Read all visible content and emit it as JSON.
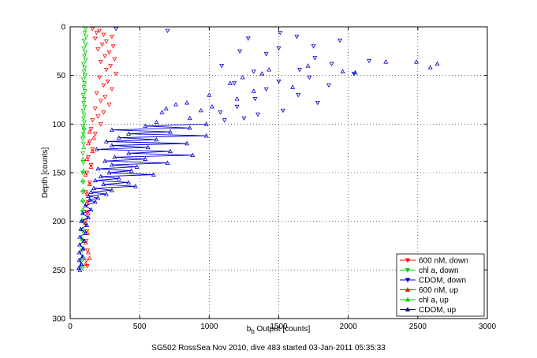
{
  "chart_data": {
    "type": "scatter",
    "title": "",
    "xlabel_main": "b",
    "xlabel_sub": "b",
    "xlabel_rest": " Output [counts]",
    "ylabel": "Depth [counts]",
    "xlim": [
      0,
      3000
    ],
    "ylim": [
      0,
      300
    ],
    "y_reversed": true,
    "grid": true,
    "legend_position": "bottom-right",
    "x_ticks": [
      0,
      500,
      1000,
      1500,
      2000,
      2500,
      3000
    ],
    "y_ticks": [
      0,
      50,
      100,
      150,
      200,
      250,
      300
    ],
    "series": [
      {
        "name": "600 nM, down",
        "color": "#ff0000",
        "marker": "triangle-down",
        "line": false,
        "points": [
          [
            160,
            2
          ],
          [
            210,
            4
          ],
          [
            190,
            6
          ],
          [
            240,
            8
          ],
          [
            300,
            10
          ],
          [
            180,
            12
          ],
          [
            260,
            15
          ],
          [
            230,
            18
          ],
          [
            310,
            20
          ],
          [
            200,
            23
          ],
          [
            280,
            26
          ],
          [
            250,
            30
          ],
          [
            320,
            33
          ],
          [
            220,
            36
          ],
          [
            290,
            40
          ],
          [
            260,
            44
          ],
          [
            330,
            48
          ],
          [
            210,
            52
          ],
          [
            270,
            56
          ],
          [
            240,
            60
          ],
          [
            300,
            64
          ],
          [
            190,
            68
          ],
          [
            250,
            72
          ],
          [
            220,
            76
          ],
          [
            280,
            80
          ],
          [
            180,
            84
          ],
          [
            240,
            88
          ],
          [
            200,
            92
          ],
          [
            160,
            96
          ],
          [
            220,
            100
          ],
          [
            150,
            105
          ],
          [
            180,
            110
          ],
          [
            140,
            118
          ],
          [
            160,
            126
          ],
          [
            130,
            134
          ],
          [
            150,
            142
          ],
          [
            120,
            150
          ],
          [
            140,
            160
          ],
          [
            110,
            170
          ],
          [
            130,
            180
          ],
          [
            120,
            190
          ],
          [
            110,
            200
          ],
          [
            120,
            210
          ],
          [
            115,
            220
          ],
          [
            125,
            230
          ],
          [
            118,
            240
          ],
          [
            122,
            246
          ]
        ]
      },
      {
        "name": "chl a, down",
        "color": "#00cc00",
        "marker": "triangle-down",
        "line": false,
        "points": [
          [
            110,
            2
          ],
          [
            105,
            6
          ],
          [
            115,
            10
          ],
          [
            100,
            14
          ],
          [
            112,
            18
          ],
          [
            98,
            22
          ],
          [
            108,
            26
          ],
          [
            102,
            30
          ],
          [
            110,
            34
          ],
          [
            96,
            38
          ],
          [
            104,
            42
          ],
          [
            100,
            46
          ],
          [
            108,
            50
          ],
          [
            95,
            54
          ],
          [
            103,
            58
          ],
          [
            99,
            62
          ],
          [
            106,
            66
          ],
          [
            94,
            70
          ],
          [
            101,
            74
          ],
          [
            97,
            78
          ],
          [
            104,
            82
          ],
          [
            93,
            86
          ],
          [
            100,
            90
          ],
          [
            96,
            94
          ],
          [
            102,
            98
          ],
          [
            92,
            102
          ],
          [
            99,
            106
          ],
          [
            95,
            110
          ],
          [
            90,
            115
          ],
          [
            96,
            120
          ],
          [
            92,
            130
          ],
          [
            95,
            140
          ],
          [
            91,
            150
          ],
          [
            94,
            160
          ],
          [
            90,
            170
          ],
          [
            93,
            180
          ],
          [
            89,
            190
          ],
          [
            92,
            200
          ],
          [
            88,
            210
          ],
          [
            91,
            220
          ],
          [
            87,
            230
          ],
          [
            90,
            240
          ],
          [
            88,
            248
          ]
        ]
      },
      {
        "name": "CDOM, down",
        "color": "#0000cc",
        "marker": "triangle-down",
        "line": false,
        "points": [
          [
            330,
            2
          ],
          [
            700,
            4
          ],
          [
            1510,
            6
          ],
          [
            1630,
            10
          ],
          [
            1280,
            12
          ],
          [
            1940,
            14
          ],
          [
            1750,
            20
          ],
          [
            1500,
            22
          ],
          [
            1220,
            25
          ],
          [
            1410,
            28
          ],
          [
            1760,
            32
          ],
          [
            2150,
            35
          ],
          [
            1880,
            38
          ],
          [
            1090,
            40
          ],
          [
            1650,
            44
          ],
          [
            1320,
            46
          ],
          [
            2040,
            48
          ],
          [
            1720,
            52
          ],
          [
            1500,
            56
          ],
          [
            1180,
            58
          ],
          [
            1860,
            60
          ],
          [
            1410,
            64
          ],
          [
            1640,
            70
          ],
          [
            1330,
            74
          ],
          [
            1780,
            78
          ],
          [
            1200,
            82
          ],
          [
            1530,
            86
          ],
          [
            1080,
            88
          ],
          [
            1350,
            90
          ],
          [
            1250,
            94
          ],
          [
            1110,
            96
          ]
        ]
      },
      {
        "name": "600 nM, up",
        "color": "#ff0000",
        "marker": "triangle-up",
        "line": false,
        "points": [
          [
            140,
            108
          ],
          [
            170,
            114
          ],
          [
            130,
            120
          ],
          [
            160,
            128
          ],
          [
            120,
            136
          ],
          [
            150,
            144
          ],
          [
            110,
            152
          ],
          [
            140,
            162
          ],
          [
            125,
            172
          ],
          [
            115,
            182
          ],
          [
            130,
            192
          ],
          [
            110,
            202
          ],
          [
            125,
            212
          ],
          [
            112,
            222
          ],
          [
            130,
            232
          ],
          [
            140,
            238
          ],
          [
            110,
            244
          ]
        ]
      },
      {
        "name": "chl a, up",
        "color": "#00cc00",
        "marker": "triangle-up",
        "line": false,
        "points": [
          [
            100,
            104
          ],
          [
            95,
            112
          ],
          [
            98,
            124
          ],
          [
            92,
            136
          ],
          [
            96,
            148
          ],
          [
            90,
            158
          ],
          [
            94,
            168
          ],
          [
            89,
            178
          ],
          [
            92,
            188
          ],
          [
            87,
            198
          ],
          [
            90,
            208
          ],
          [
            86,
            218
          ],
          [
            89,
            228
          ],
          [
            85,
            238
          ],
          [
            88,
            246
          ]
        ]
      },
      {
        "name": "CDOM, up",
        "color": "#0000cc",
        "marker": "triangle-up",
        "line": false,
        "points": [
          [
            2640,
            38
          ],
          [
            2590,
            42
          ],
          [
            2490,
            36
          ],
          [
            2270,
            36
          ],
          [
            2050,
            47
          ],
          [
            1960,
            46
          ],
          [
            1710,
            40
          ],
          [
            1430,
            44
          ],
          [
            1380,
            48
          ],
          [
            1240,
            52
          ],
          [
            1150,
            58
          ],
          [
            1600,
            62
          ],
          [
            1320,
            66
          ],
          [
            1000,
            70
          ],
          [
            1200,
            74
          ],
          [
            840,
            78
          ],
          [
            1020,
            82
          ],
          [
            690,
            84
          ],
          [
            940,
            86
          ],
          [
            660,
            88
          ],
          [
            860,
            94
          ],
          [
            620,
            98
          ],
          [
            760,
            80
          ]
        ]
      },
      {
        "name": "CDOM, up line",
        "color": "#0000cc",
        "marker": "triangle-up",
        "line": true,
        "legend": false,
        "points": [
          [
            980,
            100
          ],
          [
            540,
            102
          ],
          [
            860,
            104
          ],
          [
            300,
            106
          ],
          [
            720,
            108
          ],
          [
            420,
            110
          ],
          [
            980,
            112
          ],
          [
            350,
            114
          ],
          [
            620,
            116
          ],
          [
            260,
            118
          ],
          [
            840,
            120
          ],
          [
            300,
            122
          ],
          [
            560,
            124
          ],
          [
            190,
            126
          ],
          [
            720,
            128
          ],
          [
            420,
            130
          ],
          [
            880,
            132
          ],
          [
            320,
            134
          ],
          [
            540,
            136
          ],
          [
            250,
            138
          ],
          [
            700,
            140
          ],
          [
            300,
            142
          ],
          [
            480,
            144
          ],
          [
            200,
            146
          ],
          [
            440,
            148
          ],
          [
            280,
            150
          ],
          [
            600,
            152
          ],
          [
            220,
            154
          ],
          [
            350,
            156
          ],
          [
            180,
            158
          ],
          [
            420,
            160
          ],
          [
            240,
            162
          ],
          [
            470,
            164
          ],
          [
            170,
            166
          ],
          [
            300,
            168
          ],
          [
            150,
            170
          ],
          [
            260,
            172
          ],
          [
            130,
            174
          ],
          [
            200,
            176
          ],
          [
            140,
            178
          ],
          [
            180,
            180
          ],
          [
            110,
            184
          ],
          [
            150,
            188
          ],
          [
            90,
            192
          ],
          [
            130,
            196
          ],
          [
            80,
            200
          ],
          [
            120,
            204
          ],
          [
            75,
            208
          ],
          [
            110,
            212
          ],
          [
            70,
            216
          ],
          [
            100,
            220
          ],
          [
            68,
            224
          ],
          [
            95,
            228
          ],
          [
            66,
            232
          ],
          [
            90,
            236
          ],
          [
            65,
            240
          ],
          [
            80,
            244
          ],
          [
            62,
            248
          ],
          [
            70,
            250
          ]
        ]
      }
    ]
  },
  "footer": "SG502 RossSea Nov 2010, dive 483 started 03-Jan-2011 05:35:33"
}
